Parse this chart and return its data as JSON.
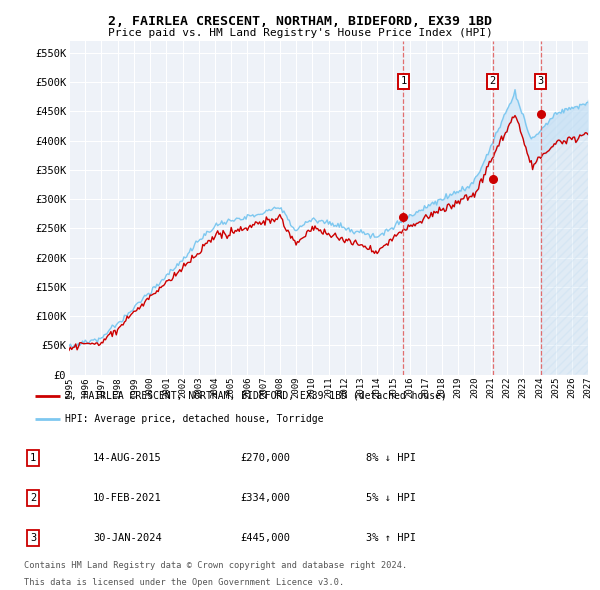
{
  "title": "2, FAIRLEA CRESCENT, NORTHAM, BIDEFORD, EX39 1BD",
  "subtitle": "Price paid vs. HM Land Registry's House Price Index (HPI)",
  "ylabel_ticks": [
    "£0",
    "£50K",
    "£100K",
    "£150K",
    "£200K",
    "£250K",
    "£300K",
    "£350K",
    "£400K",
    "£450K",
    "£500K",
    "£550K"
  ],
  "ytick_values": [
    0,
    50000,
    100000,
    150000,
    200000,
    250000,
    300000,
    350000,
    400000,
    450000,
    500000,
    550000
  ],
  "ymax": 570000,
  "x_start_year": 1995,
  "x_end_year": 2027,
  "hpi_color": "#7ec8f0",
  "price_color": "#cc0000",
  "vline_color": "#e06060",
  "bg_color": "#eef2f8",
  "grid_color": "#ffffff",
  "fill_color": "#c8e4f8",
  "hatch_color": "#b8d8f0",
  "sales": [
    {
      "date": 2015.62,
      "price": 270000,
      "label": "1"
    },
    {
      "date": 2021.12,
      "price": 334000,
      "label": "2"
    },
    {
      "date": 2024.08,
      "price": 445000,
      "label": "3"
    }
  ],
  "legend_house_label": "2, FAIRLEA CRESCENT, NORTHAM, BIDEFORD, EX39 1BD (detached house)",
  "legend_hpi_label": "HPI: Average price, detached house, Torridge",
  "table_data": [
    {
      "num": "1",
      "date": "14-AUG-2015",
      "price": "£270,000",
      "hpi": "8% ↓ HPI"
    },
    {
      "num": "2",
      "date": "10-FEB-2021",
      "price": "£334,000",
      "hpi": "5% ↓ HPI"
    },
    {
      "num": "3",
      "date": "30-JAN-2024",
      "price": "£445,000",
      "hpi": "3% ↑ HPI"
    }
  ],
  "footnote1": "Contains HM Land Registry data © Crown copyright and database right 2024.",
  "footnote2": "This data is licensed under the Open Government Licence v3.0."
}
